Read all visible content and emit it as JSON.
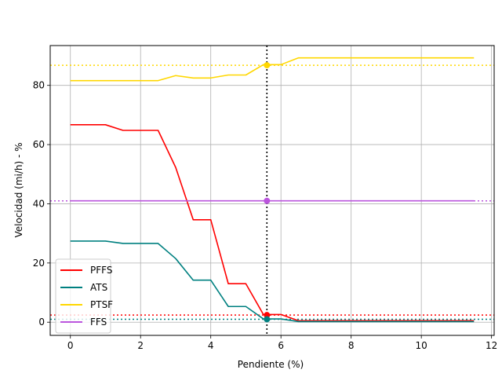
{
  "chart_data": {
    "type": "line",
    "title": "",
    "xlabel": "Pendiente (%)",
    "ylabel": "Velocidad (mi/h) - %",
    "xlim": [
      -0.575,
      12.075
    ],
    "ylim": [
      -4.45,
      93.45
    ],
    "xticks": [
      0,
      2,
      4,
      6,
      8,
      10,
      12
    ],
    "yticks": [
      0,
      20,
      40,
      60,
      80
    ],
    "grid": true,
    "legend_position": "lower-left",
    "x": [
      0,
      0.5,
      1,
      1.5,
      2,
      2.5,
      3,
      3.5,
      4,
      4.5,
      5,
      5.5,
      6,
      6.5,
      7,
      7.5,
      8,
      8.5,
      9,
      9.5,
      10,
      10.5,
      11,
      11.5
    ],
    "series": [
      {
        "name": "PFFS",
        "color": "#ff0000",
        "values": [
          66.7,
          66.7,
          66.7,
          64.8,
          64.8,
          64.8,
          52.3,
          34.6,
          34.6,
          13.0,
          13.0,
          2.6,
          2.6,
          0.5,
          0.5,
          0.5,
          0.5,
          0.5,
          0.5,
          0.5,
          0.5,
          0.5,
          0.5,
          0.5
        ]
      },
      {
        "name": "ATS",
        "color": "#008080",
        "values": [
          27.4,
          27.4,
          27.4,
          26.6,
          26.6,
          26.6,
          21.5,
          14.2,
          14.2,
          5.3,
          5.3,
          1.1,
          1.1,
          0.2,
          0.2,
          0.2,
          0.2,
          0.2,
          0.2,
          0.2,
          0.2,
          0.2,
          0.2,
          0.2
        ]
      },
      {
        "name": "PTSF",
        "color": "#ffd700",
        "values": [
          81.6,
          81.6,
          81.6,
          81.6,
          81.6,
          81.6,
          83.3,
          82.5,
          82.5,
          83.5,
          83.5,
          87.0,
          87.0,
          89.3,
          89.3,
          89.3,
          89.3,
          89.3,
          89.3,
          89.3,
          89.3,
          89.3,
          89.3,
          89.3
        ]
      },
      {
        "name": "FFS",
        "color": "#bb55dd",
        "values": [
          41.0,
          41.0,
          41.0,
          41.0,
          41.0,
          41.0,
          41.0,
          41.0,
          41.0,
          41.0,
          41.0,
          41.0,
          41.0,
          41.0,
          41.0,
          41.0,
          41.0,
          41.0,
          41.0,
          41.0,
          41.0,
          41.0,
          41.0,
          41.0
        ]
      }
    ],
    "reference_lines": {
      "vertical": {
        "x": 5.6,
        "color": "#000000"
      },
      "horizontal": [
        {
          "y": 2.4,
          "color": "#ff0000"
        },
        {
          "y": 1.0,
          "color": "#008080"
        },
        {
          "y": 86.8,
          "color": "#ffd700"
        },
        {
          "y": 41.0,
          "color": "#bb55dd"
        }
      ]
    },
    "markers": [
      {
        "x": 5.6,
        "y": 2.4,
        "color": "#ff0000"
      },
      {
        "x": 5.6,
        "y": 1.0,
        "color": "#008080"
      },
      {
        "x": 5.6,
        "y": 86.8,
        "color": "#ffd700"
      },
      {
        "x": 5.6,
        "y": 41.0,
        "color": "#bb55dd"
      }
    ]
  }
}
